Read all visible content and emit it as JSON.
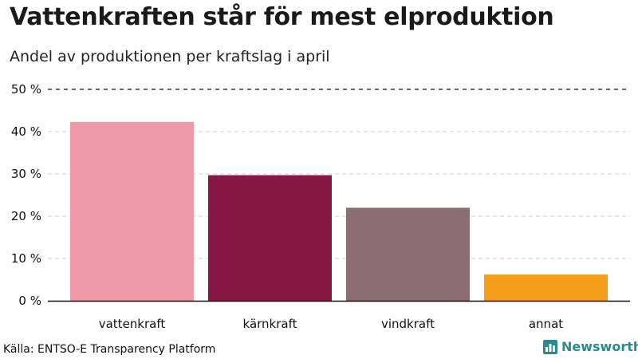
{
  "title": "Vattenkraften står för mest elproduktion",
  "subtitle": "Andel av produktionen per kraftslag i april",
  "source": "Källa: ENTSO-E Transparency Platform",
  "brand": {
    "name": "Newsworthy",
    "icon": "bar-chart-logo-icon",
    "color": "#2a8a8f"
  },
  "chart_data": {
    "type": "bar",
    "categories": [
      "vattenkraft",
      "kärnkraft",
      "vindkraft",
      "annat"
    ],
    "values": [
      42.3,
      29.7,
      22.0,
      6.2
    ],
    "colors": [
      "#ee9aa9",
      "#861745",
      "#8b6e74",
      "#f59e1b"
    ],
    "ylim": [
      0,
      50
    ],
    "yticks": [
      0,
      10,
      20,
      30,
      40,
      50
    ],
    "tick_suffix": " %",
    "grid": true
  }
}
